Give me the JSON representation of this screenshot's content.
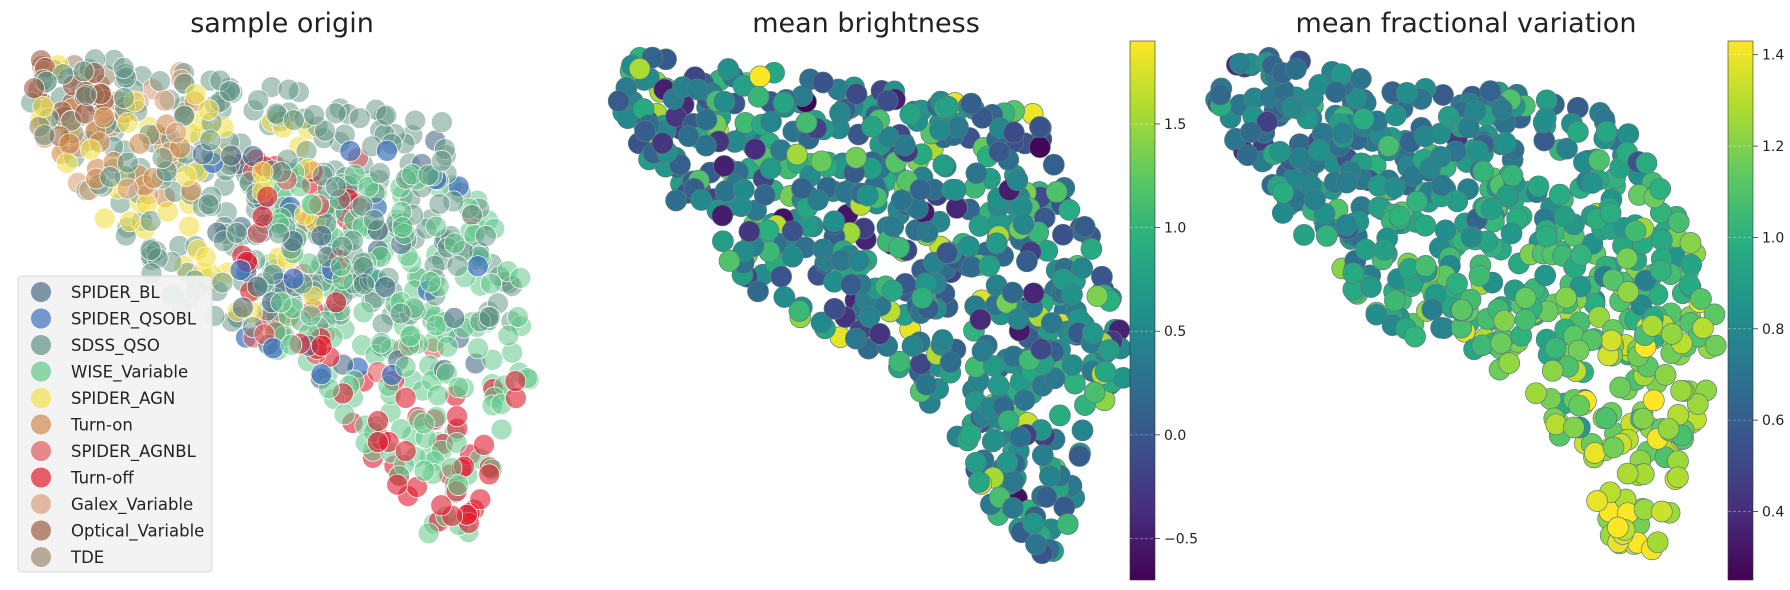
{
  "chart_data": [
    {
      "type": "scatter",
      "title": "sample origin",
      "xlabel": "",
      "ylabel": "",
      "axes_visible": false,
      "legend_position": "lower-left",
      "series": [
        {
          "name": "SPIDER_BL",
          "color": "#4a6b86",
          "count": 40,
          "region": "center",
          "opacity": 0.6
        },
        {
          "name": "SPIDER_QSOBL",
          "color": "#3d6fbd",
          "count": 20,
          "region": "center",
          "opacity": 0.7
        },
        {
          "name": "SDSS_QSO",
          "color": "#5e9182",
          "count": 300,
          "region": "upper",
          "opacity": 0.5
        },
        {
          "name": "WISE_Variable",
          "color": "#62c98a",
          "count": 200,
          "region": "lower",
          "opacity": 0.55
        },
        {
          "name": "SPIDER_AGN",
          "color": "#f1e04a",
          "count": 60,
          "region": "left",
          "opacity": 0.6
        },
        {
          "name": "Turn-on",
          "color": "#cf8b4f",
          "count": 25,
          "region": "upperleft",
          "opacity": 0.6
        },
        {
          "name": "SPIDER_AGNBL",
          "color": "#df5a5a",
          "count": 20,
          "region": "center",
          "opacity": 0.6
        },
        {
          "name": "Turn-off",
          "color": "#e01c2e",
          "count": 70,
          "region": "tail",
          "opacity": 0.6
        },
        {
          "name": "Galex_Variable",
          "color": "#d9a07a",
          "count": 20,
          "region": "upperleft",
          "opacity": 0.6
        },
        {
          "name": "Optical_Variable",
          "color": "#9d5b45",
          "count": 20,
          "region": "corner",
          "opacity": 0.6
        },
        {
          "name": "TDE",
          "color": "#9e8a6e",
          "count": 10,
          "region": "corner",
          "opacity": 0.6
        }
      ]
    },
    {
      "type": "scatter",
      "title": "mean brightness",
      "xlabel": "",
      "ylabel": "",
      "axes_visible": false,
      "colormap": "viridis",
      "colorbar": {
        "range": [
          -0.7,
          1.9
        ],
        "ticks": [
          -0.5,
          0.0,
          0.5,
          1.0,
          1.5
        ]
      },
      "value_distribution": {
        "mean": 0.45,
        "spread": 0.45
      },
      "points": 650
    },
    {
      "type": "scatter",
      "title": "mean fractional variation",
      "xlabel": "",
      "ylabel": "",
      "axes_visible": false,
      "colormap": "viridis",
      "colorbar": {
        "range": [
          0.25,
          1.43
        ],
        "ticks": [
          0.4,
          0.6,
          0.8,
          1.0,
          1.2,
          1.4
        ]
      },
      "value_distribution": {
        "gradient": "increases toward lower tail"
      },
      "points": 650
    }
  ]
}
